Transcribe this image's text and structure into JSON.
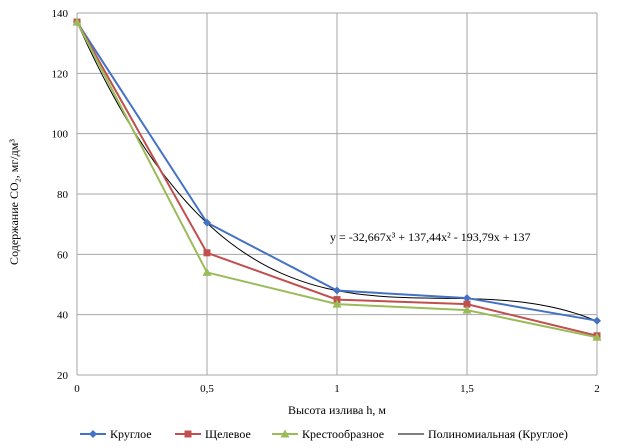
{
  "chart_data": {
    "type": "line",
    "title": "",
    "xlabel": "Высота излива h, м",
    "ylabel": "Содержание CO₂, мг/дм³",
    "x": [
      0,
      0.5,
      1,
      1.5,
      2
    ],
    "x_tick_labels": [
      "0",
      "0,5",
      "1",
      "1,5",
      "2"
    ],
    "xlim": [
      0,
      2
    ],
    "ylim": [
      20,
      140
    ],
    "y_ticks": [
      20,
      40,
      60,
      80,
      100,
      120,
      140
    ],
    "grid": true,
    "legend_position": "bottom",
    "series": [
      {
        "name": "Круглое",
        "values": [
          137,
          70.5,
          48,
          45.5,
          38
        ],
        "color": "#4472C4",
        "marker": "diamond"
      },
      {
        "name": "Щелевое",
        "values": [
          137,
          60.5,
          45,
          43.5,
          33
        ],
        "color": "#C0504D",
        "marker": "square"
      },
      {
        "name": "Крестообразное",
        "values": [
          137,
          54,
          43.5,
          41.5,
          32.5
        ],
        "color": "#9BBB59",
        "marker": "triangle"
      }
    ],
    "trendline": {
      "name": "Полиномиальная (Круглое)",
      "type": "polynomial",
      "coefficients": [
        -32.667,
        137.44,
        -193.79,
        137
      ],
      "equation": "y = -32,667x³ + 137,44x² - 193,79x + 137",
      "color": "#000000"
    }
  }
}
